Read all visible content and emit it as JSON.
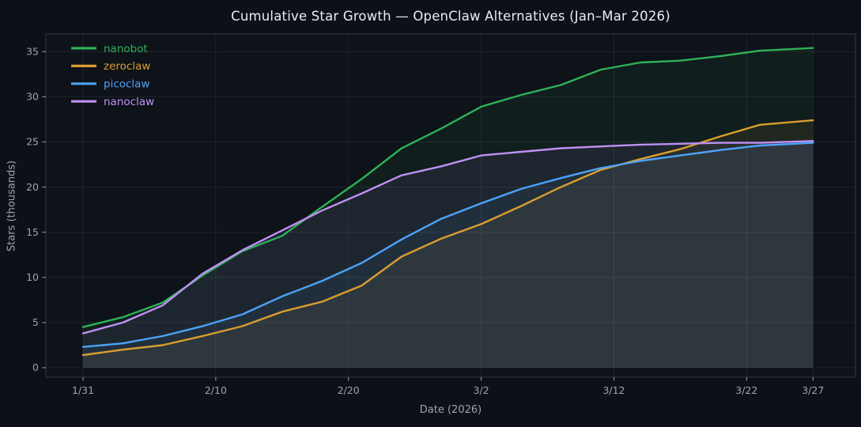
{
  "chart_data": {
    "type": "line",
    "title": "Cumulative Star Growth — OpenClaw Alternatives (Jan–Mar 2026)",
    "xlabel": "Date (2026)",
    "ylabel": "Stars (thousands)",
    "legend_position": "upper left",
    "grid": true,
    "x_dates": [
      "1/31",
      "2/3",
      "2/6",
      "2/9",
      "2/12",
      "2/15",
      "2/18",
      "2/21",
      "2/24",
      "2/27",
      "3/2",
      "3/5",
      "3/8",
      "3/11",
      "3/14",
      "3/17",
      "3/20",
      "3/23",
      "3/27"
    ],
    "series": [
      {
        "name": "nanobot",
        "color": "#2eb157",
        "values": [
          4.5,
          5.6,
          7.2,
          10.2,
          12.9,
          14.6,
          17.8,
          20.9,
          24.3,
          26.5,
          28.9,
          30.2,
          31.3,
          33.0,
          33.8,
          34.0,
          34.5,
          35.1,
          35.4
        ]
      },
      {
        "name": "zeroclaw",
        "color": "#d99e2e",
        "values": [
          1.4,
          2.0,
          2.5,
          3.5,
          4.6,
          6.2,
          7.3,
          9.1,
          12.3,
          14.3,
          15.9,
          17.9,
          20.0,
          21.9,
          23.1,
          24.2,
          25.6,
          26.9,
          27.4
        ]
      },
      {
        "name": "picoclaw",
        "color": "#4da2f8",
        "values": [
          2.3,
          2.7,
          3.5,
          4.6,
          5.9,
          7.9,
          9.6,
          11.6,
          14.2,
          16.5,
          18.2,
          19.8,
          21.0,
          22.1,
          22.9,
          23.5,
          24.1,
          24.6,
          24.9
        ]
      },
      {
        "name": "nanoclaw",
        "color": "#bf90f5",
        "values": [
          3.8,
          5.0,
          6.9,
          10.4,
          13.0,
          15.2,
          17.4,
          19.3,
          21.3,
          22.3,
          23.5,
          23.9,
          24.3,
          24.5,
          24.7,
          24.8,
          24.9,
          24.9,
          25.1
        ]
      }
    ],
    "xtick_labels": [
      "1/31",
      "2/10",
      "2/20",
      "3/2",
      "3/12",
      "3/22",
      "3/27"
    ],
    "yticks": [
      0,
      5,
      10,
      15,
      20,
      25,
      30,
      35
    ],
    "ylim": [
      0,
      37
    ],
    "colors": {
      "figure_bg": "#0d1117",
      "axes_bg": "#0e1219",
      "gridline": "#1e242c",
      "spine": "#2d333b",
      "tick_label": "#9aa4b2",
      "title_text": "#e6edf3",
      "fill_opacity": 0.08
    }
  }
}
